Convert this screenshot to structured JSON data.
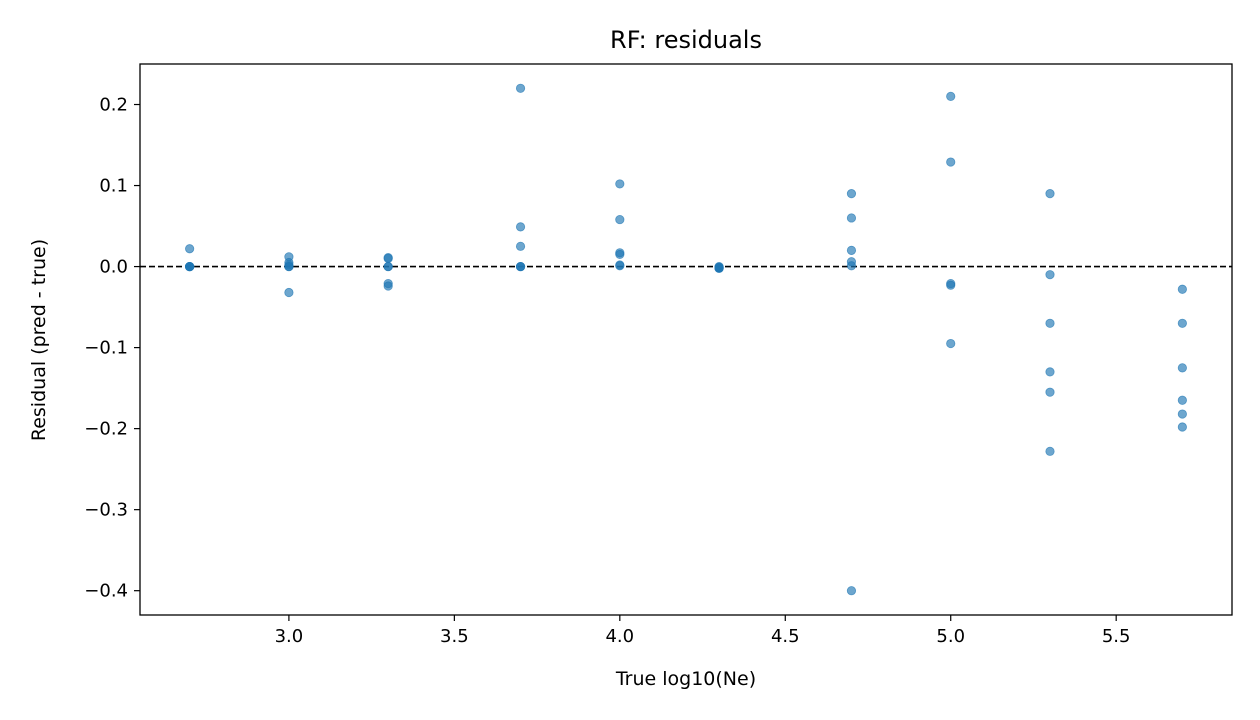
{
  "chart_data": {
    "type": "scatter",
    "title": "RF: residuals",
    "xlabel": "True log10(Ne)",
    "ylabel": "Residual (pred - true)",
    "xlim": [
      2.55,
      5.85
    ],
    "ylim": [
      -0.43,
      0.25
    ],
    "xticks": [
      3.0,
      3.5,
      4.0,
      4.5,
      5.0,
      5.5
    ],
    "xtick_labels": [
      "3.0",
      "3.5",
      "4.0",
      "4.5",
      "5.0",
      "5.5"
    ],
    "yticks": [
      0.2,
      0.1,
      0.0,
      -0.1,
      -0.2,
      -0.3,
      -0.4
    ],
    "ytick_labels": [
      "0.2",
      "0.1",
      "0.0",
      "−0.1",
      "−0.2",
      "−0.3",
      "−0.4"
    ],
    "reference_line": {
      "y": 0.0,
      "style": "dashed",
      "color": "#000000"
    },
    "grid": false,
    "marker_color": "#1f77b4",
    "marker_alpha": 0.65,
    "points": [
      {
        "x": 2.7,
        "y": 0.022
      },
      {
        "x": 2.7,
        "y": 0.0
      },
      {
        "x": 2.7,
        "y": 0.0
      },
      {
        "x": 2.7,
        "y": 0.0
      },
      {
        "x": 2.7,
        "y": 0.0
      },
      {
        "x": 2.7,
        "y": 0.0
      },
      {
        "x": 3.0,
        "y": 0.012
      },
      {
        "x": 3.0,
        "y": 0.005
      },
      {
        "x": 3.0,
        "y": 0.002
      },
      {
        "x": 3.0,
        "y": 0.0
      },
      {
        "x": 3.0,
        "y": 0.0
      },
      {
        "x": 3.0,
        "y": -0.032
      },
      {
        "x": 3.3,
        "y": 0.011
      },
      {
        "x": 3.3,
        "y": 0.01
      },
      {
        "x": 3.3,
        "y": 0.0
      },
      {
        "x": 3.3,
        "y": 0.0
      },
      {
        "x": 3.3,
        "y": -0.021
      },
      {
        "x": 3.3,
        "y": -0.024
      },
      {
        "x": 3.7,
        "y": 0.22
      },
      {
        "x": 3.7,
        "y": 0.049
      },
      {
        "x": 3.7,
        "y": 0.025
      },
      {
        "x": 3.7,
        "y": 0.0
      },
      {
        "x": 3.7,
        "y": 0.0
      },
      {
        "x": 3.7,
        "y": 0.0
      },
      {
        "x": 4.0,
        "y": 0.102
      },
      {
        "x": 4.0,
        "y": 0.058
      },
      {
        "x": 4.0,
        "y": 0.017
      },
      {
        "x": 4.0,
        "y": 0.015
      },
      {
        "x": 4.0,
        "y": 0.002
      },
      {
        "x": 4.0,
        "y": 0.001
      },
      {
        "x": 4.3,
        "y": 0.0
      },
      {
        "x": 4.3,
        "y": -0.001
      },
      {
        "x": 4.3,
        "y": -0.001
      },
      {
        "x": 4.3,
        "y": -0.002
      },
      {
        "x": 4.3,
        "y": -0.002
      },
      {
        "x": 4.3,
        "y": -0.002
      },
      {
        "x": 4.7,
        "y": 0.09
      },
      {
        "x": 4.7,
        "y": 0.06
      },
      {
        "x": 4.7,
        "y": 0.02
      },
      {
        "x": 4.7,
        "y": 0.006
      },
      {
        "x": 4.7,
        "y": 0.001
      },
      {
        "x": 4.7,
        "y": -0.4
      },
      {
        "x": 5.0,
        "y": 0.21
      },
      {
        "x": 5.0,
        "y": 0.129
      },
      {
        "x": 5.0,
        "y": -0.021
      },
      {
        "x": 5.0,
        "y": -0.023
      },
      {
        "x": 5.0,
        "y": -0.095
      },
      {
        "x": 5.3,
        "y": 0.09
      },
      {
        "x": 5.3,
        "y": -0.01
      },
      {
        "x": 5.3,
        "y": -0.07
      },
      {
        "x": 5.3,
        "y": -0.13
      },
      {
        "x": 5.3,
        "y": -0.155
      },
      {
        "x": 5.3,
        "y": -0.228
      },
      {
        "x": 5.7,
        "y": -0.028
      },
      {
        "x": 5.7,
        "y": -0.07
      },
      {
        "x": 5.7,
        "y": -0.125
      },
      {
        "x": 5.7,
        "y": -0.165
      },
      {
        "x": 5.7,
        "y": -0.182
      },
      {
        "x": 5.7,
        "y": -0.198
      }
    ]
  }
}
